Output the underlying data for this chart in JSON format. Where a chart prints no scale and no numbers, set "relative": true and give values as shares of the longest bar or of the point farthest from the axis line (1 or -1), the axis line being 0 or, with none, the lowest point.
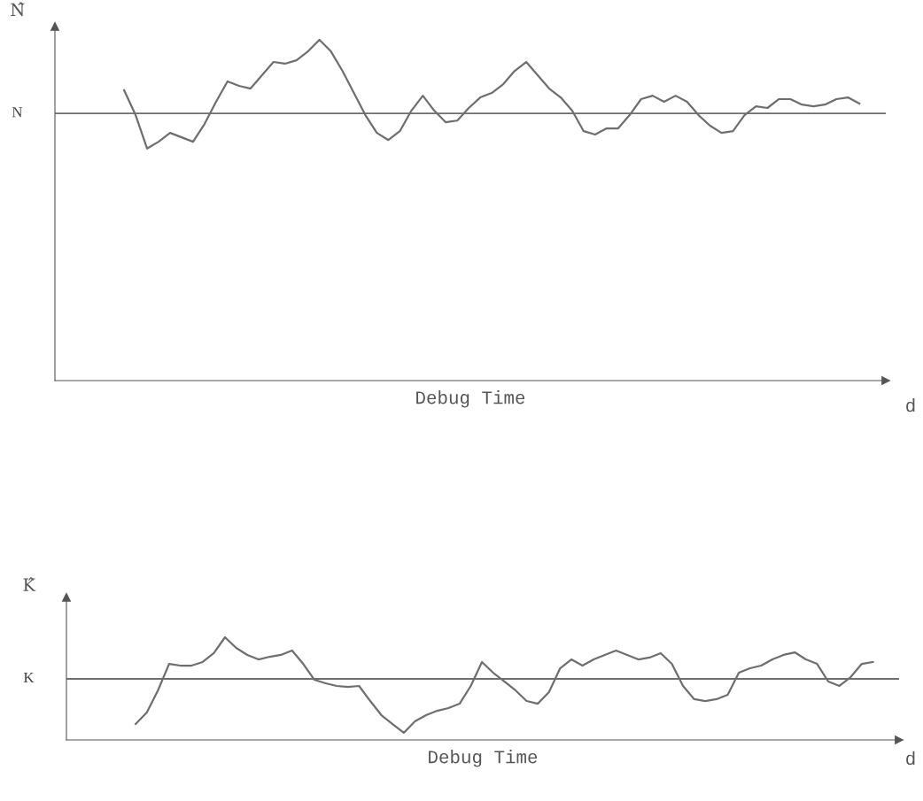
{
  "chart_data": [
    {
      "type": "line",
      "xlabel": "Debug Time",
      "ylabel": "N̂",
      "relative": true,
      "tick_labels": false,
      "annotations": [
        "d"
      ],
      "categories": [
        null,
        null,
        null,
        null,
        null,
        null,
        null,
        null,
        null,
        null,
        null,
        null,
        null,
        null,
        null,
        null,
        null,
        null,
        null,
        null,
        null,
        null,
        null,
        null,
        null,
        null,
        null,
        null,
        null,
        null,
        null,
        null,
        null,
        null,
        null,
        null,
        null,
        null,
        null,
        null,
        null,
        null,
        null,
        null,
        null,
        null,
        null,
        null,
        null,
        null,
        null,
        null,
        null,
        null,
        null,
        null,
        null,
        null,
        null,
        null,
        null,
        null,
        null,
        null,
        null
      ],
      "series": [
        {
          "color": "#6e6e6e",
          "values": [
            0.852,
            0.779,
            0.681,
            0.701,
            0.727,
            0.714,
            0.701,
            0.753,
            0.818,
            0.878,
            0.865,
            0.857,
            0.896,
            0.935,
            0.93,
            0.94,
            0.966,
            1.0,
            0.966,
            0.909,
            0.844,
            0.779,
            0.727,
            0.706,
            0.732,
            0.792,
            0.836,
            0.792,
            0.758,
            0.763,
            0.8,
            0.831,
            0.844,
            0.87,
            0.909,
            0.935,
            0.896,
            0.857,
            0.831,
            0.792,
            0.732,
            0.722,
            0.74,
            0.74,
            0.779,
            0.826,
            0.836,
            0.818,
            0.836,
            0.818,
            0.779,
            0.748,
            0.727,
            0.732,
            0.779,
            0.805,
            0.8,
            0.826,
            0.826,
            0.81,
            0.805,
            0.81,
            0.826,
            0.831,
            0.813
          ]
        }
      ],
      "ref_lines": [
        {
          "axis": "y",
          "value": 0.784,
          "label": "N",
          "color": "#6e6e6e"
        }
      ]
    },
    {
      "type": "line",
      "xlabel": "Debug Time",
      "ylabel": "K̂",
      "relative": true,
      "tick_labels": false,
      "annotations": [
        "d"
      ],
      "categories": [
        null,
        null,
        null,
        null,
        null,
        null,
        null,
        null,
        null,
        null,
        null,
        null,
        null,
        null,
        null,
        null,
        null,
        null,
        null,
        null,
        null,
        null,
        null,
        null,
        null,
        null,
        null,
        null,
        null,
        null,
        null,
        null,
        null,
        null,
        null,
        null,
        null,
        null,
        null,
        null,
        null,
        null,
        null,
        null,
        null,
        null,
        null,
        null,
        null,
        null,
        null,
        null,
        null,
        null,
        null,
        null,
        null,
        null,
        null,
        null,
        null,
        null,
        null,
        null,
        null,
        null,
        null
      ],
      "series": [
        {
          "color": "#6e6e6e",
          "values": [
            0.155,
            0.267,
            0.483,
            0.741,
            0.724,
            0.724,
            0.759,
            0.845,
            1.0,
            0.897,
            0.828,
            0.784,
            0.81,
            0.828,
            0.871,
            0.741,
            0.586,
            0.552,
            0.526,
            0.517,
            0.526,
            0.379,
            0.241,
            0.155,
            0.069,
            0.181,
            0.241,
            0.284,
            0.31,
            0.353,
            0.526,
            0.759,
            0.655,
            0.569,
            0.483,
            0.379,
            0.353,
            0.466,
            0.698,
            0.784,
            0.724,
            0.784,
            0.828,
            0.871,
            0.828,
            0.784,
            0.802,
            0.845,
            0.741,
            0.526,
            0.397,
            0.379,
            0.397,
            0.44,
            0.655,
            0.698,
            0.724,
            0.784,
            0.828,
            0.853,
            0.784,
            0.741,
            0.569,
            0.526,
            0.612,
            0.741,
            0.759
          ]
        }
      ],
      "ref_lines": [
        {
          "axis": "y",
          "value": 0.595,
          "label": "K",
          "color": "#6e6e6e"
        }
      ]
    }
  ]
}
